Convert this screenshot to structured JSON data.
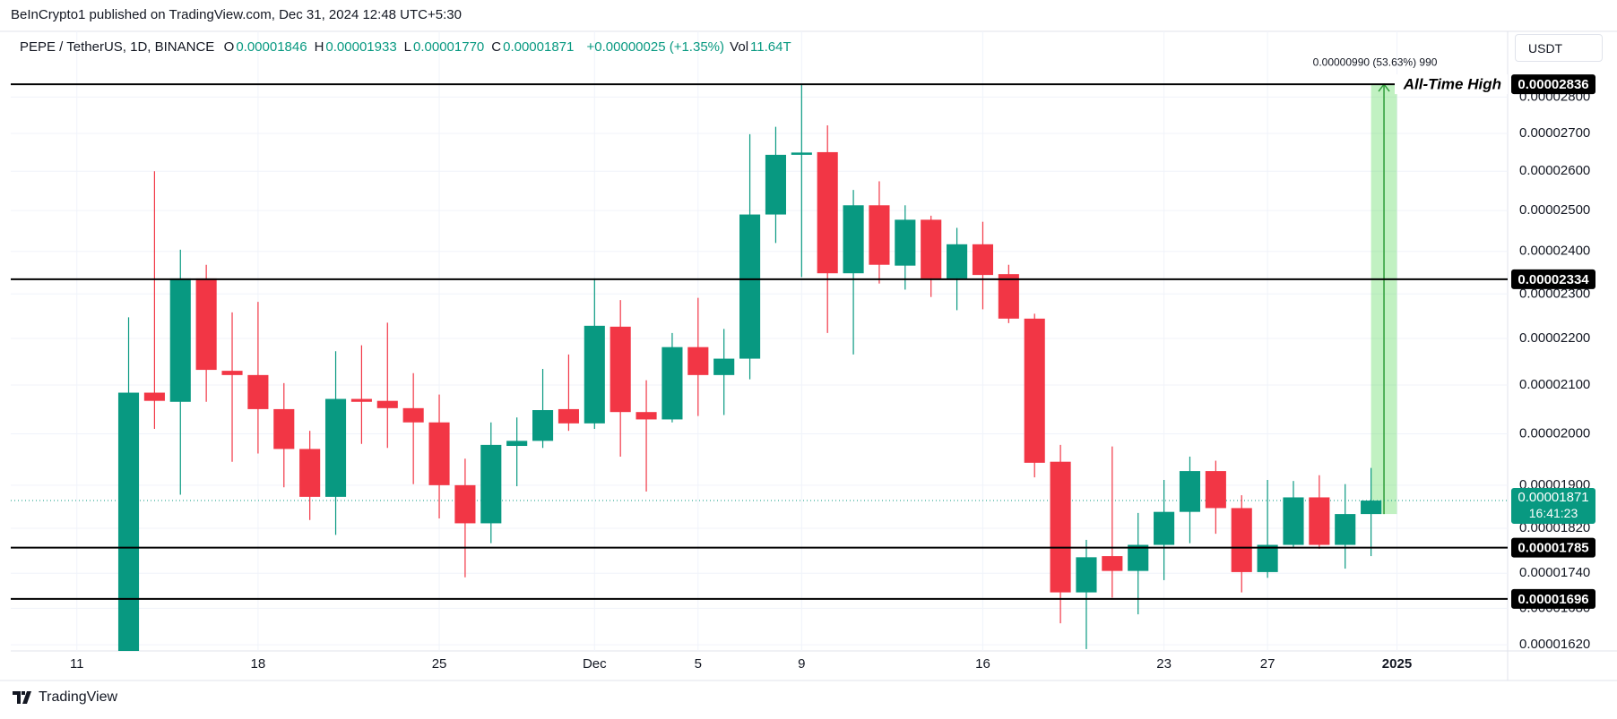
{
  "header": {
    "published": "BeInCrypto1 published on TradingView.com, Dec 31, 2024 12:48 UTC+5:30"
  },
  "legend": {
    "symbol": "PEPE / TetherUS, 1D, BINANCE",
    "fields": [
      {
        "key": "O",
        "value": "0.00001846"
      },
      {
        "key": "H",
        "value": "0.00001933"
      },
      {
        "key": "L",
        "value": "0.00001770"
      },
      {
        "key": "C",
        "value": "0.00001871"
      }
    ],
    "change": "+0.00000025 (+1.35%)",
    "volume_key": "Vol",
    "volume": "11.64T"
  },
  "currency_button": "USDT",
  "footer": {
    "brand": "TradingView"
  },
  "chart_data": {
    "type": "candlestick",
    "log_scale": true,
    "grid": true,
    "up_color": "#089981",
    "down_color": "#f23645",
    "x": [
      "2024-11-13",
      "2024-11-14",
      "2024-11-15",
      "2024-11-16",
      "2024-11-17",
      "2024-11-18",
      "2024-11-19",
      "2024-11-20",
      "2024-11-21",
      "2024-11-22",
      "2024-11-23",
      "2024-11-24",
      "2024-11-25",
      "2024-11-26",
      "2024-11-27",
      "2024-11-28",
      "2024-11-29",
      "2024-11-30",
      "2024-12-01",
      "2024-12-02",
      "2024-12-03",
      "2024-12-04",
      "2024-12-05",
      "2024-12-06",
      "2024-12-07",
      "2024-12-08",
      "2024-12-09",
      "2024-12-10",
      "2024-12-11",
      "2024-12-12",
      "2024-12-13",
      "2024-12-14",
      "2024-12-15",
      "2024-12-16",
      "2024-12-17",
      "2024-12-18",
      "2024-12-19",
      "2024-12-20",
      "2024-12-21",
      "2024-12-22",
      "2024-12-23",
      "2024-12-24",
      "2024-12-25",
      "2024-12-26",
      "2024-12-27",
      "2024-12-28",
      "2024-12-29",
      "2024-12-30",
      "2024-12-31"
    ],
    "open": [
      1.54e-05,
      2.084e-05,
      2.065e-05,
      2.336e-05,
      2.13e-05,
      2.121e-05,
      2.05e-05,
      1.97e-05,
      1.878e-05,
      2.071e-05,
      2.067e-05,
      2.052e-05,
      2.023e-05,
      1.9e-05,
      1.829e-05,
      1.976e-05,
      1.986e-05,
      2.05e-05,
      2.021e-05,
      2.226e-05,
      2.044e-05,
      2.029e-05,
      2.181e-05,
      2.121e-05,
      2.156e-05,
      2.49e-05,
      2.643e-05,
      2.65e-05,
      2.348e-05,
      2.513e-05,
      2.366e-05,
      2.477e-05,
      2.336e-05,
      2.417e-05,
      2.346e-05,
      2.244e-05,
      1.945e-05,
      1.707e-05,
      1.77e-05,
      1.744e-05,
      1.79e-05,
      1.85e-05,
      1.927e-05,
      1.857e-05,
      1.742e-05,
      1.79e-05,
      1.877e-05,
      1.79e-05,
      1.846e-05
    ],
    "high": [
      2.247e-05,
      2.6e-05,
      2.404e-05,
      2.368e-05,
      2.258e-05,
      2.282e-05,
      2.104e-05,
      2.006e-05,
      2.172e-05,
      2.185e-05,
      2.235e-05,
      2.125e-05,
      2.08e-05,
      1.951e-05,
      2.023e-05,
      2.033e-05,
      2.134e-05,
      2.165e-05,
      2.336e-05,
      2.286e-05,
      2.11e-05,
      2.212e-05,
      2.291e-05,
      2.221e-05,
      2.698e-05,
      2.718e-05,
      2.836e-05,
      2.722e-05,
      2.552e-05,
      2.574e-05,
      2.513e-05,
      2.487e-05,
      2.457e-05,
      2.472e-05,
      2.368e-05,
      2.255e-05,
      1.978e-05,
      1.799e-05,
      1.975e-05,
      1.848e-05,
      1.91e-05,
      1.955e-05,
      1.947e-05,
      1.881e-05,
      1.91e-05,
      1.908e-05,
      1.919e-05,
      1.902e-05,
      1.933e-05
    ],
    "low": [
      1.48e-05,
      2.01e-05,
      1.882e-05,
      2.065e-05,
      1.945e-05,
      1.961e-05,
      1.896e-05,
      1.835e-05,
      1.808e-05,
      1.98e-05,
      1.972e-05,
      1.902e-05,
      1.838e-05,
      1.733e-05,
      1.793e-05,
      1.898e-05,
      1.972e-05,
      2.006e-05,
      2.01e-05,
      1.955e-05,
      1.888e-05,
      2.023e-05,
      2.036e-05,
      2.038e-05,
      2.112e-05,
      2.42e-05,
      2.339e-05,
      2.212e-05,
      2.165e-05,
      2.324e-05,
      2.31e-05,
      2.293e-05,
      2.263e-05,
      2.265e-05,
      2.234e-05,
      1.915e-05,
      1.655e-05,
      1.613e-05,
      1.698e-05,
      1.67e-05,
      1.728e-05,
      1.793e-05,
      1.81e-05,
      1.707e-05,
      1.732e-05,
      1.785e-05,
      1.783e-05,
      1.748e-05,
      1.77e-05
    ],
    "close": [
      2.084e-05,
      2.067e-05,
      2.336e-05,
      2.132e-05,
      2.121e-05,
      2.05e-05,
      1.97e-05,
      1.878e-05,
      2.071e-05,
      2.065e-05,
      2.052e-05,
      2.023e-05,
      1.9e-05,
      1.829e-05,
      1.978e-05,
      1.986e-05,
      2.048e-05,
      2.021e-05,
      2.228e-05,
      2.044e-05,
      2.029e-05,
      2.181e-05,
      2.121e-05,
      2.156e-05,
      2.49e-05,
      2.643e-05,
      2.649e-05,
      2.348e-05,
      2.513e-05,
      2.368e-05,
      2.477e-05,
      2.336e-05,
      2.417e-05,
      2.344e-05,
      2.244e-05,
      1.943e-05,
      1.707e-05,
      1.768e-05,
      1.744e-05,
      1.79e-05,
      1.85e-05,
      1.927e-05,
      1.857e-05,
      1.742e-05,
      1.79e-05,
      1.877e-05,
      1.79e-05,
      1.846e-05,
      1.871e-05
    ],
    "xlim": [
      "2024-11-09",
      "2025-01-05"
    ],
    "xticks": [
      {
        "value": "2024-11-11",
        "label": "11"
      },
      {
        "value": "2024-11-18",
        "label": "18"
      },
      {
        "value": "2024-11-25",
        "label": "25"
      },
      {
        "value": "2024-12-01",
        "label": "Dec"
      },
      {
        "value": "2024-12-05",
        "label": "5"
      },
      {
        "value": "2024-12-09",
        "label": "9"
      },
      {
        "value": "2024-12-16",
        "label": "16"
      },
      {
        "value": "2024-12-23",
        "label": "23"
      },
      {
        "value": "2024-12-27",
        "label": "27"
      },
      {
        "value": "2025-01-01",
        "label": "2025"
      }
    ],
    "ylim": [
      1.61e-05,
      2.99e-05
    ],
    "yticks": [
      {
        "value": 2.8e-05,
        "label": "0.00002800"
      },
      {
        "value": 2.7e-05,
        "label": "0.00002700"
      },
      {
        "value": 2.6e-05,
        "label": "0.00002600"
      },
      {
        "value": 2.5e-05,
        "label": "0.00002500"
      },
      {
        "value": 2.4e-05,
        "label": "0.00002400"
      },
      {
        "value": 2.3e-05,
        "label": "0.00002300"
      },
      {
        "value": 2.2e-05,
        "label": "0.00002200"
      },
      {
        "value": 2.1e-05,
        "label": "0.00002100"
      },
      {
        "value": 2e-05,
        "label": "0.00002000"
      },
      {
        "value": 1.9e-05,
        "label": "0.00001900"
      },
      {
        "value": 1.82e-05,
        "label": "0.00001820"
      },
      {
        "value": 1.74e-05,
        "label": "0.00001740"
      },
      {
        "value": 1.68e-05,
        "label": "0.00001680"
      },
      {
        "value": 1.62e-05,
        "label": "0.00001620"
      }
    ],
    "levels": [
      {
        "value": 2.836e-05,
        "label": "All-Time High"
      },
      {
        "value": 2.334e-05
      },
      {
        "value": 1.785e-05
      },
      {
        "value": 1.696e-05
      }
    ],
    "last_price": {
      "value": 1.871e-05,
      "countdown": "16:41:23"
    },
    "measure": {
      "from": 1.846e-05,
      "to": 2.836e-05,
      "x_from": "2024-12-31",
      "x_to": "2025-01-01",
      "label": "0.00000990 (53.63%) 990"
    }
  }
}
